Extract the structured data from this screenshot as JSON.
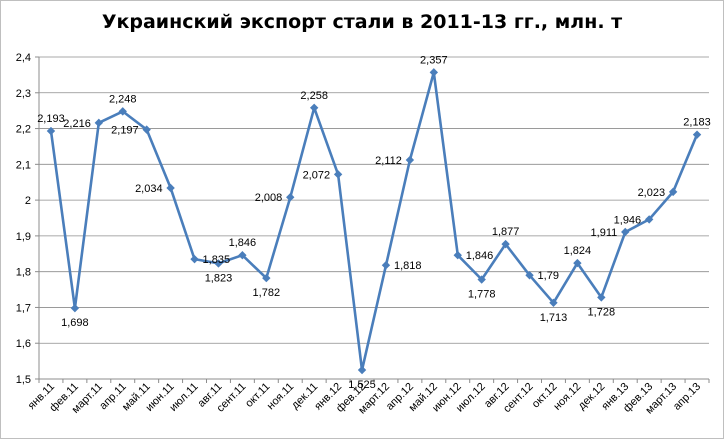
{
  "chart_data": {
    "type": "line",
    "title": "Украинский экспорт стали в 2011-13 гг., млн. т",
    "categories": [
      "янв.11",
      "фев.11",
      "март.11",
      "апр.11",
      "май.11",
      "июн.11",
      "июл.11",
      "авг.11",
      "сент.11",
      "окт.11",
      "ноя.11",
      "дек.11",
      "янв.12",
      "фев.12",
      "март.12",
      "апр.12",
      "май.12",
      "июн.12",
      "июл.12",
      "авг.12",
      "сент.12",
      "окт.12",
      "ноя.12",
      "дек.12",
      "янв.13",
      "фев.13",
      "март.13",
      "апр.13"
    ],
    "values": [
      2.193,
      1.698,
      2.216,
      2.248,
      2.197,
      2.034,
      1.835,
      1.823,
      1.846,
      1.782,
      2.008,
      2.258,
      2.072,
      1.525,
      1.818,
      2.112,
      2.357,
      1.846,
      1.778,
      1.877,
      1.79,
      1.713,
      1.824,
      1.728,
      1.911,
      1.946,
      2.023,
      2.183
    ],
    "data_labels": [
      "2,193",
      "1,698",
      "2,216",
      "2,248",
      "2,197",
      "2,034",
      "1,835",
      "1,823",
      "1,846",
      "1,782",
      "2,008",
      "2,258",
      "2,072",
      "1,525",
      "1,818",
      "2,112",
      "2,357",
      "1,846",
      "1,778",
      "1,877",
      "1,79",
      "1,713",
      "1,824",
      "1,728",
      "1,911",
      "1,946",
      "2,023",
      "2,183"
    ],
    "y_ticks": [
      "1,5",
      "1,6",
      "1,7",
      "1,8",
      "1,9",
      "2",
      "2,1",
      "2,2",
      "2,3",
      "2,4"
    ],
    "ylim": [
      1.5,
      2.4
    ],
    "grid": true,
    "legend": "none",
    "series_color": "#4a7ebb"
  }
}
